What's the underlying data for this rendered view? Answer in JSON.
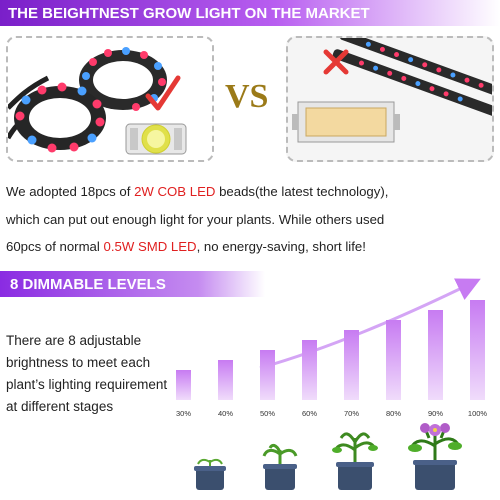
{
  "header": {
    "title": "THE BEIGHTNEST GROW LIGHT ON THE MARKET"
  },
  "comparison": {
    "vs_label": "VS",
    "description": {
      "line1_before": "We adopted 18pcs of ",
      "line1_highlight": "2W COB LED",
      "line1_after": " beads(the latest technology),",
      "line2": "which can put out enough light for your plants. While others used",
      "line3_before": "60pcs of normal ",
      "line3_highlight": "0.5W SMD LED",
      "line3_after": ", no energy-saving, short life!"
    },
    "left_mark": "check-mark",
    "right_mark": "x-mark",
    "colors": {
      "check": "#e53935",
      "x": "#e53935",
      "vs": "#9b7a18"
    }
  },
  "levels": {
    "banner": "8 DIMMABLE LEVELS",
    "intro": "There are 8 adjustable brightness to meet each plant’s lighting requirement at different stages"
  },
  "chart_data": {
    "type": "bar",
    "categories": [
      "30%",
      "40%",
      "50%",
      "60%",
      "70%",
      "80%",
      "90%",
      "100%"
    ],
    "values": [
      30,
      40,
      50,
      60,
      70,
      80,
      90,
      100
    ],
    "title": "",
    "xlabel": "",
    "ylabel": "",
    "ylim": [
      0,
      100
    ],
    "bar_color_top": "#c77bf2",
    "bar_color_bottom": "#f0dcfb"
  },
  "plants": {
    "count": 4,
    "pot_color": "#3b4f6e"
  }
}
